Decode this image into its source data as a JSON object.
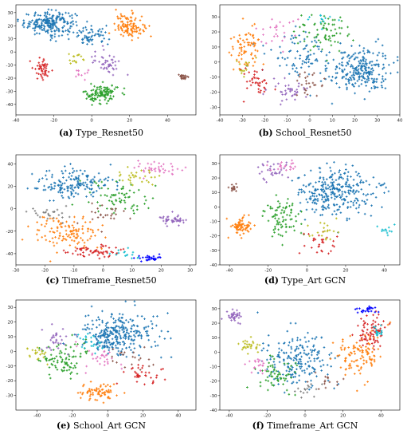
{
  "palette": [
    "#1f77b4",
    "#ff7f0e",
    "#2ca02c",
    "#d62728",
    "#9467bd",
    "#8c564b",
    "#e377c2",
    "#7f7f7f",
    "#bcbd22",
    "#17becf",
    "#0000ff"
  ],
  "chart_data": [
    {
      "id": "a",
      "type": "scatter",
      "letter": "(a)",
      "caption": "Type_Resnet50",
      "xlim": [
        -40,
        55
      ],
      "ylim": [
        -48,
        36
      ],
      "xticks": [
        -40,
        -20,
        0,
        20,
        40
      ],
      "yticks": [
        -40,
        -30,
        -20,
        -10,
        0,
        10,
        20,
        30
      ],
      "clusters": [
        {
          "c": 0,
          "cx": -22,
          "cy": 22,
          "sx": 9,
          "sy": 6,
          "n": 220
        },
        {
          "c": 0,
          "cx": 0,
          "cy": 12,
          "sx": 6,
          "sy": 5,
          "n": 60
        },
        {
          "c": 1,
          "cx": 20,
          "cy": 20,
          "sx": 5,
          "sy": 6,
          "n": 110
        },
        {
          "c": 2,
          "cx": 5,
          "cy": -32,
          "sx": 6,
          "sy": 5,
          "n": 120
        },
        {
          "c": 3,
          "cx": -26,
          "cy": -12,
          "sx": 3,
          "sy": 5,
          "n": 50
        },
        {
          "c": 4,
          "cx": 8,
          "cy": -8,
          "sx": 5,
          "sy": 6,
          "n": 45
        },
        {
          "c": 5,
          "cx": 48,
          "cy": -19,
          "sx": 1.5,
          "sy": 1.5,
          "n": 25
        },
        {
          "c": 8,
          "cx": -8,
          "cy": -5,
          "sx": 3,
          "sy": 3,
          "n": 15
        },
        {
          "c": 6,
          "cx": -5,
          "cy": -15,
          "sx": 4,
          "sy": 4,
          "n": 12
        }
      ]
    },
    {
      "id": "b",
      "type": "scatter",
      "letter": "(b)",
      "caption": "School_Resnet50",
      "xlim": [
        -40,
        40
      ],
      "ylim": [
        -35,
        38
      ],
      "xticks": [
        -40,
        -30,
        -20,
        -10,
        0,
        10,
        20,
        30,
        40
      ],
      "yticks": [
        -30,
        -20,
        -10,
        0,
        10,
        20,
        30
      ],
      "clusters": [
        {
          "c": 0,
          "cx": 22,
          "cy": -5,
          "sx": 9,
          "sy": 10,
          "n": 260
        },
        {
          "c": 0,
          "cx": -5,
          "cy": 5,
          "sx": 10,
          "sy": 10,
          "n": 80
        },
        {
          "c": 1,
          "cx": -28,
          "cy": 10,
          "sx": 5,
          "sy": 8,
          "n": 70
        },
        {
          "c": 2,
          "cx": 5,
          "cy": 20,
          "sx": 8,
          "sy": 8,
          "n": 70
        },
        {
          "c": 3,
          "cx": -25,
          "cy": -12,
          "sx": 5,
          "sy": 6,
          "n": 40
        },
        {
          "c": 4,
          "cx": -10,
          "cy": -20,
          "sx": 6,
          "sy": 5,
          "n": 40
        },
        {
          "c": 6,
          "cx": -15,
          "cy": 20,
          "sx": 6,
          "sy": 6,
          "n": 25
        },
        {
          "c": 5,
          "cx": 0,
          "cy": -15,
          "sx": 6,
          "sy": 6,
          "n": 25
        },
        {
          "c": 8,
          "cx": -30,
          "cy": -5,
          "sx": 3,
          "sy": 5,
          "n": 15
        },
        {
          "c": 9,
          "cx": 5,
          "cy": 28,
          "sx": 4,
          "sy": 3,
          "n": 12
        }
      ]
    },
    {
      "id": "c",
      "type": "scatter",
      "letter": "(c)",
      "caption": "Timeframe_Resnet50",
      "xlim": [
        -30,
        32
      ],
      "ylim": [
        -50,
        48
      ],
      "xticks": [
        -30,
        -20,
        -10,
        0,
        10,
        20,
        30
      ],
      "yticks": [
        -40,
        -20,
        0,
        20,
        40
      ],
      "clusters": [
        {
          "c": 0,
          "cx": -10,
          "cy": 22,
          "sx": 9,
          "sy": 9,
          "n": 170
        },
        {
          "c": 1,
          "cx": -12,
          "cy": -22,
          "sx": 8,
          "sy": 10,
          "n": 120
        },
        {
          "c": 3,
          "cx": -3,
          "cy": -38,
          "sx": 6,
          "sy": 4,
          "n": 60
        },
        {
          "c": 4,
          "cx": 24,
          "cy": -10,
          "sx": 3,
          "sy": 3,
          "n": 45
        },
        {
          "c": 2,
          "cx": 5,
          "cy": 10,
          "sx": 8,
          "sy": 10,
          "n": 70
        },
        {
          "c": 10,
          "cx": 16,
          "cy": -44,
          "sx": 2.5,
          "sy": 2,
          "n": 30
        },
        {
          "c": 6,
          "cx": 18,
          "cy": 35,
          "sx": 6,
          "sy": 4,
          "n": 40
        },
        {
          "c": 7,
          "cx": -18,
          "cy": -5,
          "sx": 5,
          "sy": 5,
          "n": 25
        },
        {
          "c": 8,
          "cx": 10,
          "cy": 30,
          "sx": 6,
          "sy": 5,
          "n": 30
        },
        {
          "c": 5,
          "cx": 0,
          "cy": -5,
          "sx": 5,
          "sy": 6,
          "n": 25
        },
        {
          "c": 9,
          "cx": 8,
          "cy": -40,
          "sx": 4,
          "sy": 3,
          "n": 15
        }
      ]
    },
    {
      "id": "d",
      "type": "scatter",
      "letter": "(d)",
      "caption": "Type_Art GCN",
      "xlim": [
        -45,
        48
      ],
      "ylim": [
        -40,
        36
      ],
      "xticks": [
        -40,
        -20,
        0,
        20,
        40
      ],
      "yticks": [
        -40,
        -30,
        -20,
        -10,
        0,
        10,
        20,
        30
      ],
      "clusters": [
        {
          "c": 0,
          "cx": 15,
          "cy": 10,
          "sx": 13,
          "sy": 11,
          "n": 300
        },
        {
          "c": 1,
          "cx": -34,
          "cy": -14,
          "sx": 4,
          "sy": 5,
          "n": 70
        },
        {
          "c": 2,
          "cx": -12,
          "cy": -8,
          "sx": 6,
          "sy": 9,
          "n": 80
        },
        {
          "c": 3,
          "cx": 5,
          "cy": -25,
          "sx": 6,
          "sy": 5,
          "n": 30
        },
        {
          "c": 4,
          "cx": -18,
          "cy": 25,
          "sx": 5,
          "sy": 5,
          "n": 30
        },
        {
          "c": 5,
          "cx": -38,
          "cy": 13,
          "sx": 1.5,
          "sy": 2,
          "n": 15
        },
        {
          "c": 6,
          "cx": -12,
          "cy": 28,
          "sx": 5,
          "sy": 3,
          "n": 20
        },
        {
          "c": 8,
          "cx": 10,
          "cy": -18,
          "sx": 6,
          "sy": 5,
          "n": 20
        },
        {
          "c": 9,
          "cx": 40,
          "cy": -17,
          "sx": 3,
          "sy": 3,
          "n": 12
        }
      ]
    },
    {
      "id": "e",
      "type": "scatter",
      "letter": "(e)",
      "caption": "School_Art GCN",
      "xlim": [
        -52,
        50
      ],
      "ylim": [
        -40,
        35
      ],
      "xticks": [
        -40,
        -20,
        0,
        20,
        40
      ],
      "yticks": [
        -30,
        -20,
        -10,
        0,
        10,
        20,
        30
      ],
      "clusters": [
        {
          "c": 0,
          "cx": 5,
          "cy": 12,
          "sx": 14,
          "sy": 10,
          "n": 300
        },
        {
          "c": 1,
          "cx": -5,
          "cy": -28,
          "sx": 7,
          "sy": 4,
          "n": 70
        },
        {
          "c": 2,
          "cx": -25,
          "cy": -5,
          "sx": 9,
          "sy": 8,
          "n": 90
        },
        {
          "c": 3,
          "cx": 20,
          "cy": -15,
          "sx": 8,
          "sy": 4,
          "n": 35
        },
        {
          "c": 4,
          "cx": -30,
          "cy": 8,
          "sx": 7,
          "sy": 6,
          "n": 30
        },
        {
          "c": 6,
          "cx": -5,
          "cy": -5,
          "sx": 7,
          "sy": 6,
          "n": 30
        },
        {
          "c": 8,
          "cx": -40,
          "cy": -2,
          "sx": 4,
          "sy": 4,
          "n": 20
        },
        {
          "c": 9,
          "cx": -10,
          "cy": 5,
          "sx": 6,
          "sy": 6,
          "n": 20
        },
        {
          "c": 5,
          "cx": 10,
          "cy": -5,
          "sx": 8,
          "sy": 6,
          "n": 20
        }
      ]
    },
    {
      "id": "f",
      "type": "scatter",
      "letter": "(f)",
      "caption": "Timeframe_Art GCN",
      "xlim": [
        -45,
        50
      ],
      "ylim": [
        -40,
        36
      ],
      "xticks": [
        -40,
        -20,
        0,
        20,
        40
      ],
      "yticks": [
        -40,
        -30,
        -20,
        -10,
        0,
        10,
        20,
        30
      ],
      "clusters": [
        {
          "c": 0,
          "cx": -5,
          "cy": -5,
          "sx": 12,
          "sy": 12,
          "n": 200
        },
        {
          "c": 1,
          "cx": 28,
          "cy": 0,
          "sx": 8,
          "sy": 10,
          "n": 110
        },
        {
          "c": 3,
          "cx": 35,
          "cy": 15,
          "sx": 5,
          "sy": 8,
          "n": 80
        },
        {
          "c": 4,
          "cx": -37,
          "cy": 25,
          "sx": 3,
          "sy": 3,
          "n": 35
        },
        {
          "c": 2,
          "cx": -15,
          "cy": -15,
          "sx": 6,
          "sy": 8,
          "n": 60
        },
        {
          "c": 8,
          "cx": -30,
          "cy": 5,
          "sx": 4,
          "sy": 3,
          "n": 30
        },
        {
          "c": 10,
          "cx": 33,
          "cy": 29,
          "sx": 4,
          "sy": 2,
          "n": 25
        },
        {
          "c": 6,
          "cx": -25,
          "cy": -10,
          "sx": 4,
          "sy": 4,
          "n": 20
        },
        {
          "c": 9,
          "cx": 38,
          "cy": 15,
          "sx": 3,
          "sy": 4,
          "n": 15
        },
        {
          "c": 7,
          "cx": 0,
          "cy": -25,
          "sx": 5,
          "sy": 4,
          "n": 15
        },
        {
          "c": 5,
          "cx": 10,
          "cy": -20,
          "sx": 5,
          "sy": 4,
          "n": 15
        }
      ]
    }
  ]
}
